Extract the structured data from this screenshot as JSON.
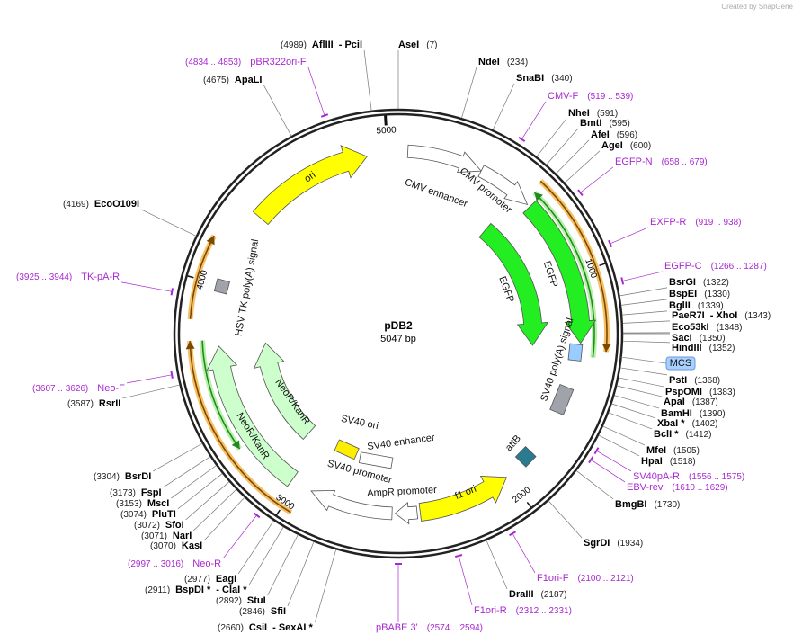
{
  "watermark": "Created by SnapGene",
  "plasmid": {
    "name": "pDB2",
    "size": "5047 bp"
  },
  "scale_labels": [
    "5000",
    "1000",
    "2000",
    "3000",
    "4000"
  ],
  "features": [
    {
      "label": "ori"
    },
    {
      "label": "CMV enhancer"
    },
    {
      "label": "CMV promoter"
    },
    {
      "label": "EGFP"
    },
    {
      "label": "EGFP"
    },
    {
      "label": "SV40 poly(A) signal"
    },
    {
      "label": "MCS"
    },
    {
      "label": "attB"
    },
    {
      "label": "f1 ori"
    },
    {
      "label": "AmpR promoter"
    },
    {
      "label": "SV40 promoter"
    },
    {
      "label": "SV40 enhancer"
    },
    {
      "label": "SV40 ori"
    },
    {
      "label": "NeoR/KanR"
    },
    {
      "label": "NeoR/KanR"
    },
    {
      "label": "HSV TK poly(A) signal"
    }
  ],
  "sites": [
    {
      "position": "(4989)",
      "name": "AflIII",
      "name2": "- PciI"
    },
    {
      "position": "(7)",
      "name": "AseI"
    },
    {
      "position": "(234)",
      "name": "NdeI"
    },
    {
      "position": "(340)",
      "name": "SnaBI"
    },
    {
      "position": "(591)",
      "name": "NheI"
    },
    {
      "position": "(595)",
      "name": "BmtI"
    },
    {
      "position": "(596)",
      "name": "AfeI"
    },
    {
      "position": "(600)",
      "name": "AgeI"
    },
    {
      "position": "(1322)",
      "name": "BsrGI"
    },
    {
      "position": "(1330)",
      "name": "BspEI"
    },
    {
      "position": "(1339)",
      "name": "BglII"
    },
    {
      "position": "(1343)",
      "name": "PaeR7I",
      "name2": "- XhoI"
    },
    {
      "position": "(1348)",
      "name": "Eco53kI"
    },
    {
      "position": "(1350)",
      "name": "SacI"
    },
    {
      "position": "(1352)",
      "name": "HindIII"
    },
    {
      "position": "(1368)",
      "name": "PstI"
    },
    {
      "position": "(1383)",
      "name": "PspOMI"
    },
    {
      "position": "(1387)",
      "name": "ApaI"
    },
    {
      "position": "(1390)",
      "name": "BamHI"
    },
    {
      "position": "(1402)",
      "name": "XbaI *"
    },
    {
      "position": "(1412)",
      "name": "BclI *"
    },
    {
      "position": "(1505)",
      "name": "MfeI"
    },
    {
      "position": "(1518)",
      "name": "HpaI"
    },
    {
      "position": "(1730)",
      "name": "BmgBI"
    },
    {
      "position": "(1934)",
      "name": "SgrDI"
    },
    {
      "position": "(2187)",
      "name": "DraIII"
    },
    {
      "position": "(4675)",
      "name": "ApaLI"
    },
    {
      "position": "(4169)",
      "name": "EcoO109I"
    },
    {
      "position": "(3587)",
      "name": "RsrII"
    },
    {
      "position": "(3304)",
      "name": "BsrDI"
    },
    {
      "position": "(3173)",
      "name": "FspI"
    },
    {
      "position": "(3153)",
      "name": "MscI"
    },
    {
      "position": "(3074)",
      "name": "PluTI"
    },
    {
      "position": "(3072)",
      "name": "SfoI"
    },
    {
      "position": "(3071)",
      "name": "NarI"
    },
    {
      "position": "(3070)",
      "name": "KasI"
    },
    {
      "position": "(2977)",
      "name": "EagI"
    },
    {
      "position": "(2911)",
      "name": "BspDI *",
      "name2": "- ClaI *"
    },
    {
      "position": "(2892)",
      "name": "StuI"
    },
    {
      "position": "(2846)",
      "name": "SfiI"
    },
    {
      "position": "(2660)",
      "name": "CsiI",
      "name2": "- SexAI *"
    }
  ],
  "primers": [
    {
      "name": "pBR322ori-F",
      "range": "(4834 .. 4853)"
    },
    {
      "name": "CMV-F",
      "range": "(519 .. 539)"
    },
    {
      "name": "EGFP-N",
      "range": "(658 .. 679)"
    },
    {
      "name": "EXFP-R",
      "range": "(919 .. 938)"
    },
    {
      "name": "EGFP-C",
      "range": "(1266 .. 1287)"
    },
    {
      "name": "SV40pA-R",
      "range": "(1556 .. 1575)"
    },
    {
      "name": "EBV-rev",
      "range": "(1610 .. 1629)"
    },
    {
      "name": "F1ori-F",
      "range": "(2100 .. 2121)"
    },
    {
      "name": "F1ori-R",
      "range": "(2312 .. 2331)"
    },
    {
      "name": "pBABE 3'",
      "range": "(2574 .. 2594)"
    },
    {
      "name": "Neo-R",
      "range": "(2997 .. 3016)"
    },
    {
      "name": "Neo-F",
      "range": "(3607 .. 3626)"
    },
    {
      "name": "TK-pA-R",
      "range": "(3925 .. 3944)"
    }
  ]
}
